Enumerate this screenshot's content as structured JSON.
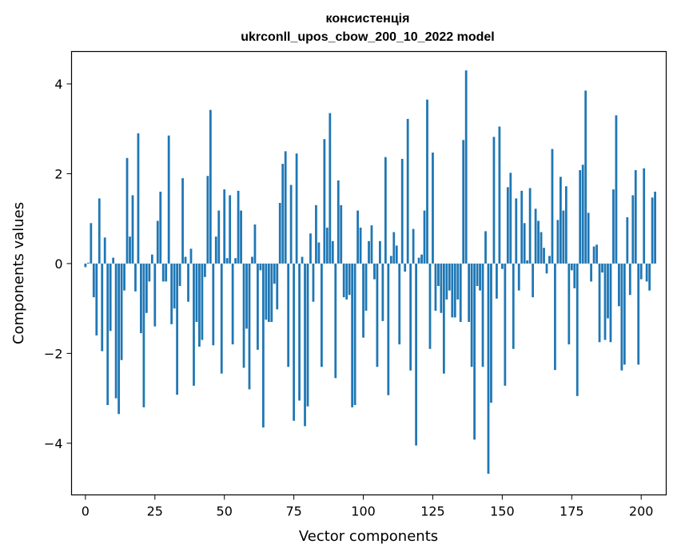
{
  "chart_data": {
    "type": "bar",
    "title_line1": "консистенція",
    "title_line2": "ukrconll_upos_cbow_200_10_2022 model",
    "xlabel": "Vector components",
    "ylabel": "Components values",
    "xlim": [
      -5,
      209
    ],
    "ylim": [
      -5.15,
      4.72
    ],
    "xticks": [
      0,
      25,
      50,
      75,
      100,
      125,
      150,
      175,
      200
    ],
    "yticks": [
      -4,
      -2,
      0,
      2,
      4
    ],
    "ytick_labels": [
      "−4",
      "−2",
      "0",
      "2",
      "4"
    ],
    "bar_color": "#1f77b4",
    "grid": false,
    "values": [
      -0.08,
      0.02,
      0.9,
      -0.75,
      -1.6,
      1.45,
      -1.95,
      0.58,
      -3.15,
      -1.5,
      0.13,
      -3.0,
      -3.35,
      -2.15,
      -0.6,
      2.35,
      0.6,
      1.52,
      -0.62,
      2.9,
      -1.55,
      -3.2,
      -1.1,
      -0.4,
      0.2,
      -1.4,
      0.95,
      1.6,
      -0.4,
      -0.4,
      2.85,
      -1.35,
      -1.0,
      -2.92,
      -0.5,
      1.9,
      0.15,
      -0.85,
      0.33,
      -2.72,
      -1.3,
      -1.85,
      -1.7,
      -0.3,
      1.95,
      3.42,
      -1.82,
      0.6,
      1.18,
      -2.45,
      1.65,
      0.12,
      1.52,
      -1.8,
      0.12,
      1.62,
      1.18,
      -2.32,
      -1.45,
      -2.8,
      0.15,
      0.87,
      -1.92,
      -0.15,
      -3.65,
      -1.25,
      -1.3,
      -1.3,
      -0.45,
      -1.02,
      1.35,
      2.22,
      2.5,
      -2.3,
      1.75,
      -3.5,
      2.45,
      -3.05,
      0.15,
      -3.62,
      -3.18,
      0.67,
      -0.85,
      1.3,
      0.47,
      -2.3,
      2.77,
      0.8,
      3.35,
      0.5,
      -2.55,
      1.85,
      1.3,
      -0.75,
      -0.8,
      -0.7,
      -3.2,
      -3.15,
      1.18,
      0.8,
      -1.65,
      -1.05,
      0.5,
      0.85,
      -0.35,
      -2.3,
      0.5,
      -1.28,
      2.37,
      -2.93,
      0.17,
      0.7,
      0.4,
      -1.8,
      2.33,
      -0.18,
      3.22,
      -2.38,
      0.77,
      -4.05,
      0.13,
      0.2,
      1.18,
      3.65,
      -1.9,
      2.47,
      -1.05,
      -0.5,
      -1.1,
      -2.45,
      -0.8,
      -0.6,
      -1.2,
      -1.2,
      -0.8,
      -1.3,
      2.75,
      4.3,
      -1.3,
      -2.3,
      -3.92,
      -0.5,
      -0.6,
      -2.3,
      0.72,
      -4.68,
      -3.1,
      2.82,
      -0.78,
      3.05,
      -0.12,
      -2.72,
      1.7,
      2.02,
      -1.9,
      1.45,
      -0.6,
      1.62,
      0.9,
      0.07,
      1.68,
      -0.75,
      1.22,
      0.95,
      0.7,
      0.35,
      -0.22,
      0.17,
      2.55,
      -2.37,
      0.97,
      1.93,
      1.18,
      1.72,
      -1.8,
      -0.15,
      -0.55,
      -2.95,
      2.08,
      2.2,
      3.85,
      1.13,
      -0.4,
      0.38,
      0.42,
      -1.75,
      -0.2,
      -1.7,
      -1.22,
      -1.75,
      1.65,
      3.3,
      -0.95,
      -2.38,
      -2.25,
      1.03,
      -0.7,
      1.52,
      2.08,
      -2.25,
      -0.35,
      2.12,
      -0.4,
      -0.6,
      1.47,
      1.6
    ]
  }
}
